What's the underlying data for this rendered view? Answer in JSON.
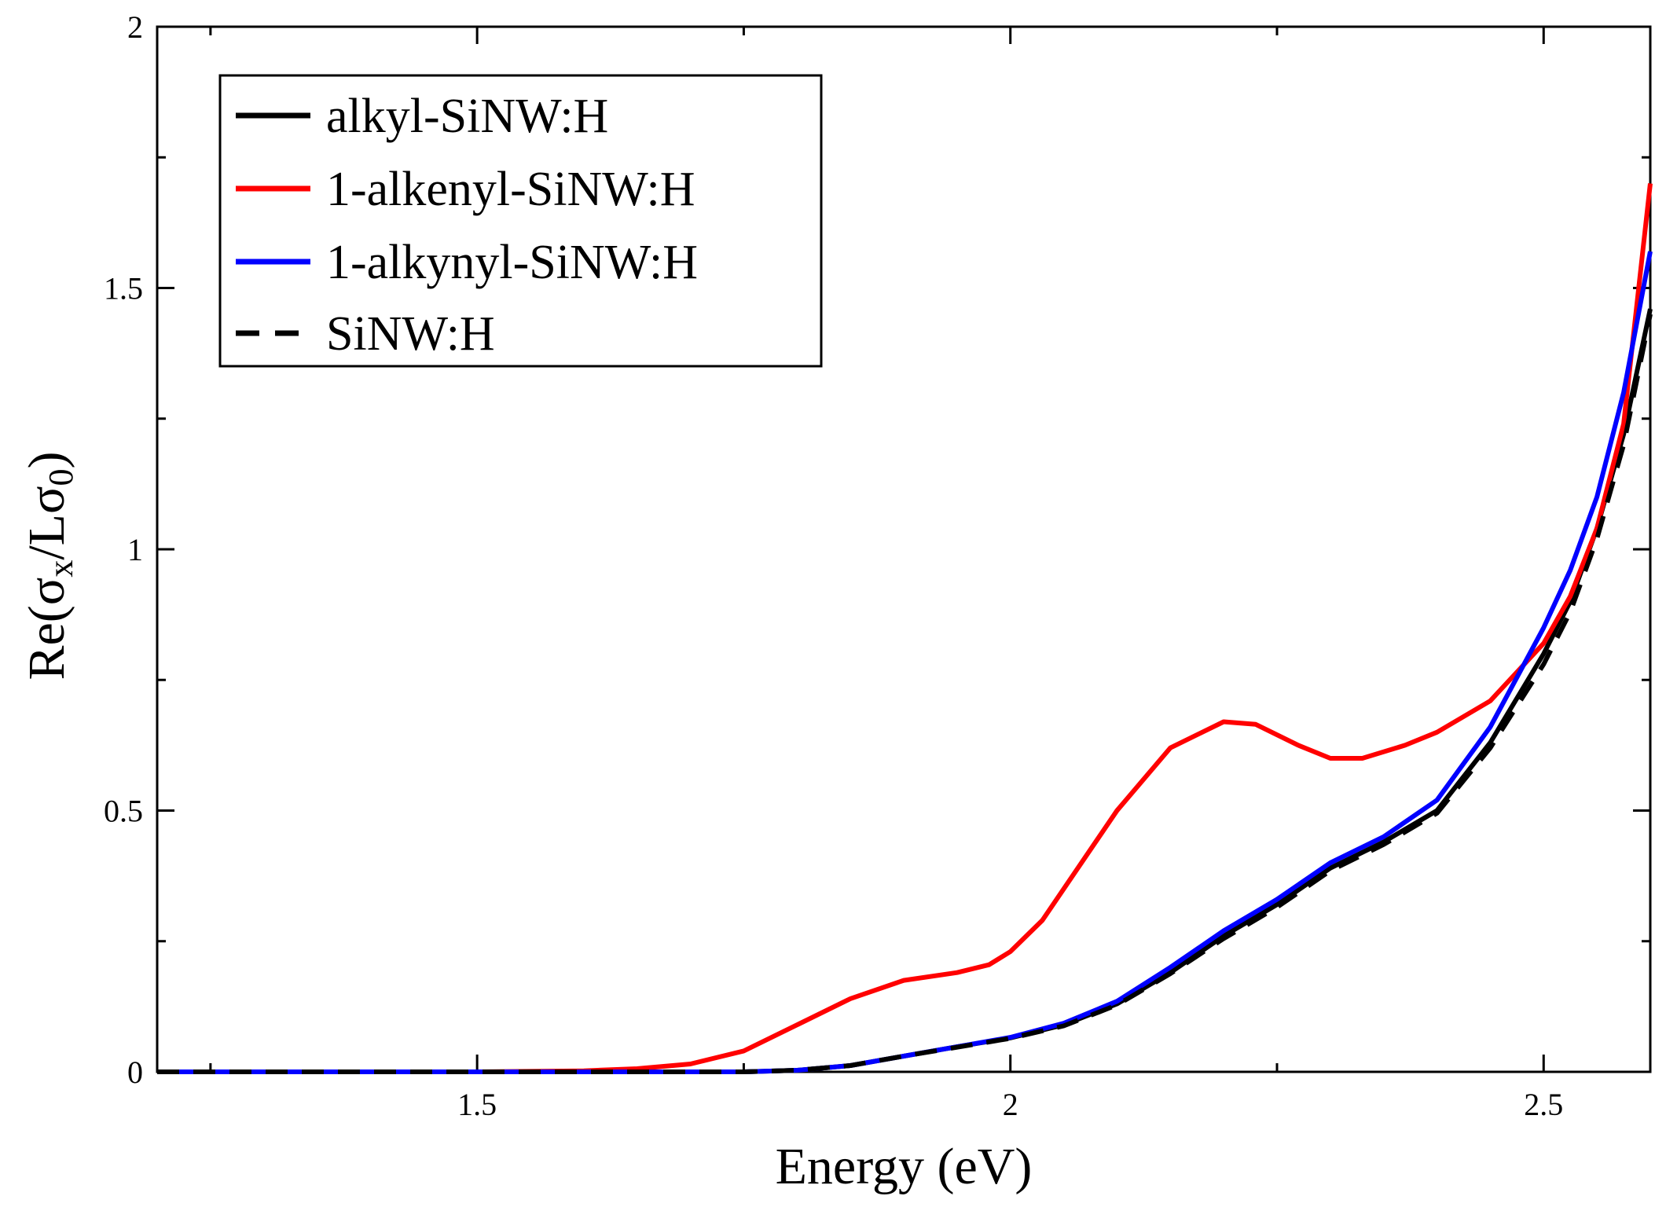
{
  "chart_data": {
    "type": "line",
    "xlabel": "Energy (eV)",
    "ylabel": {
      "base": "Re(σ",
      "sub1": "x",
      "mid": "/Lσ",
      "sub2": "0",
      "end": ")"
    },
    "xlim": [
      1.2,
      2.6
    ],
    "ylim": [
      0,
      2
    ],
    "xticks": [
      1.5,
      2,
      2.5
    ],
    "xtick_labels": [
      "1.5",
      "2",
      "2.5"
    ],
    "yticks": [
      0,
      0.5,
      1,
      1.5,
      2
    ],
    "ytick_labels": [
      "0",
      "0.5",
      "1",
      "1.5",
      "2"
    ],
    "legend_position": "top-left",
    "series": [
      {
        "name": "alkyl-SiNW:H",
        "color": "#000000",
        "style": "solid",
        "points": [
          [
            1.2,
            0
          ],
          [
            1.75,
            0
          ],
          [
            1.8,
            0.003
          ],
          [
            1.85,
            0.012
          ],
          [
            1.9,
            0.03
          ],
          [
            1.95,
            0.048
          ],
          [
            2.0,
            0.065
          ],
          [
            2.05,
            0.09
          ],
          [
            2.1,
            0.13
          ],
          [
            2.15,
            0.19
          ],
          [
            2.2,
            0.26
          ],
          [
            2.25,
            0.32
          ],
          [
            2.3,
            0.39
          ],
          [
            2.35,
            0.44
          ],
          [
            2.4,
            0.5
          ],
          [
            2.45,
            0.63
          ],
          [
            2.5,
            0.8
          ],
          [
            2.525,
            0.9
          ],
          [
            2.55,
            1.04
          ],
          [
            2.575,
            1.22
          ],
          [
            2.6,
            1.46
          ]
        ]
      },
      {
        "name": "1-alkenyl-SiNW:H",
        "color": "#ff0000",
        "style": "solid",
        "points": [
          [
            1.2,
            0
          ],
          [
            1.5,
            0
          ],
          [
            1.6,
            0.002
          ],
          [
            1.65,
            0.006
          ],
          [
            1.7,
            0.015
          ],
          [
            1.75,
            0.04
          ],
          [
            1.8,
            0.09
          ],
          [
            1.85,
            0.14
          ],
          [
            1.9,
            0.175
          ],
          [
            1.95,
            0.19
          ],
          [
            1.98,
            0.205
          ],
          [
            2.0,
            0.23
          ],
          [
            2.03,
            0.29
          ],
          [
            2.06,
            0.38
          ],
          [
            2.1,
            0.5
          ],
          [
            2.15,
            0.62
          ],
          [
            2.2,
            0.67
          ],
          [
            2.23,
            0.665
          ],
          [
            2.27,
            0.625
          ],
          [
            2.3,
            0.6
          ],
          [
            2.33,
            0.6
          ],
          [
            2.37,
            0.625
          ],
          [
            2.4,
            0.65
          ],
          [
            2.45,
            0.71
          ],
          [
            2.5,
            0.82
          ],
          [
            2.525,
            0.91
          ],
          [
            2.55,
            1.04
          ],
          [
            2.575,
            1.24
          ],
          [
            2.6,
            1.7
          ]
        ]
      },
      {
        "name": "1-alkynyl-SiNW:H",
        "color": "#0000ff",
        "style": "solid",
        "points": [
          [
            1.2,
            0
          ],
          [
            1.75,
            0
          ],
          [
            1.8,
            0.003
          ],
          [
            1.85,
            0.012
          ],
          [
            1.9,
            0.03
          ],
          [
            1.95,
            0.048
          ],
          [
            2.0,
            0.066
          ],
          [
            2.05,
            0.093
          ],
          [
            2.1,
            0.135
          ],
          [
            2.15,
            0.2
          ],
          [
            2.2,
            0.27
          ],
          [
            2.25,
            0.33
          ],
          [
            2.3,
            0.4
          ],
          [
            2.35,
            0.45
          ],
          [
            2.4,
            0.52
          ],
          [
            2.45,
            0.66
          ],
          [
            2.5,
            0.85
          ],
          [
            2.525,
            0.96
          ],
          [
            2.55,
            1.1
          ],
          [
            2.575,
            1.3
          ],
          [
            2.6,
            1.57
          ]
        ]
      },
      {
        "name": "SiNW:H",
        "color": "#000000",
        "style": "dashed",
        "points": [
          [
            1.2,
            0
          ],
          [
            1.75,
            0
          ],
          [
            1.8,
            0.003
          ],
          [
            1.85,
            0.012
          ],
          [
            1.9,
            0.03
          ],
          [
            1.95,
            0.047
          ],
          [
            2.0,
            0.064
          ],
          [
            2.05,
            0.088
          ],
          [
            2.1,
            0.128
          ],
          [
            2.15,
            0.188
          ],
          [
            2.2,
            0.255
          ],
          [
            2.25,
            0.315
          ],
          [
            2.3,
            0.385
          ],
          [
            2.35,
            0.435
          ],
          [
            2.4,
            0.495
          ],
          [
            2.45,
            0.62
          ],
          [
            2.5,
            0.78
          ],
          [
            2.525,
            0.88
          ],
          [
            2.55,
            1.02
          ],
          [
            2.575,
            1.2
          ],
          [
            2.6,
            1.45
          ]
        ]
      }
    ]
  }
}
